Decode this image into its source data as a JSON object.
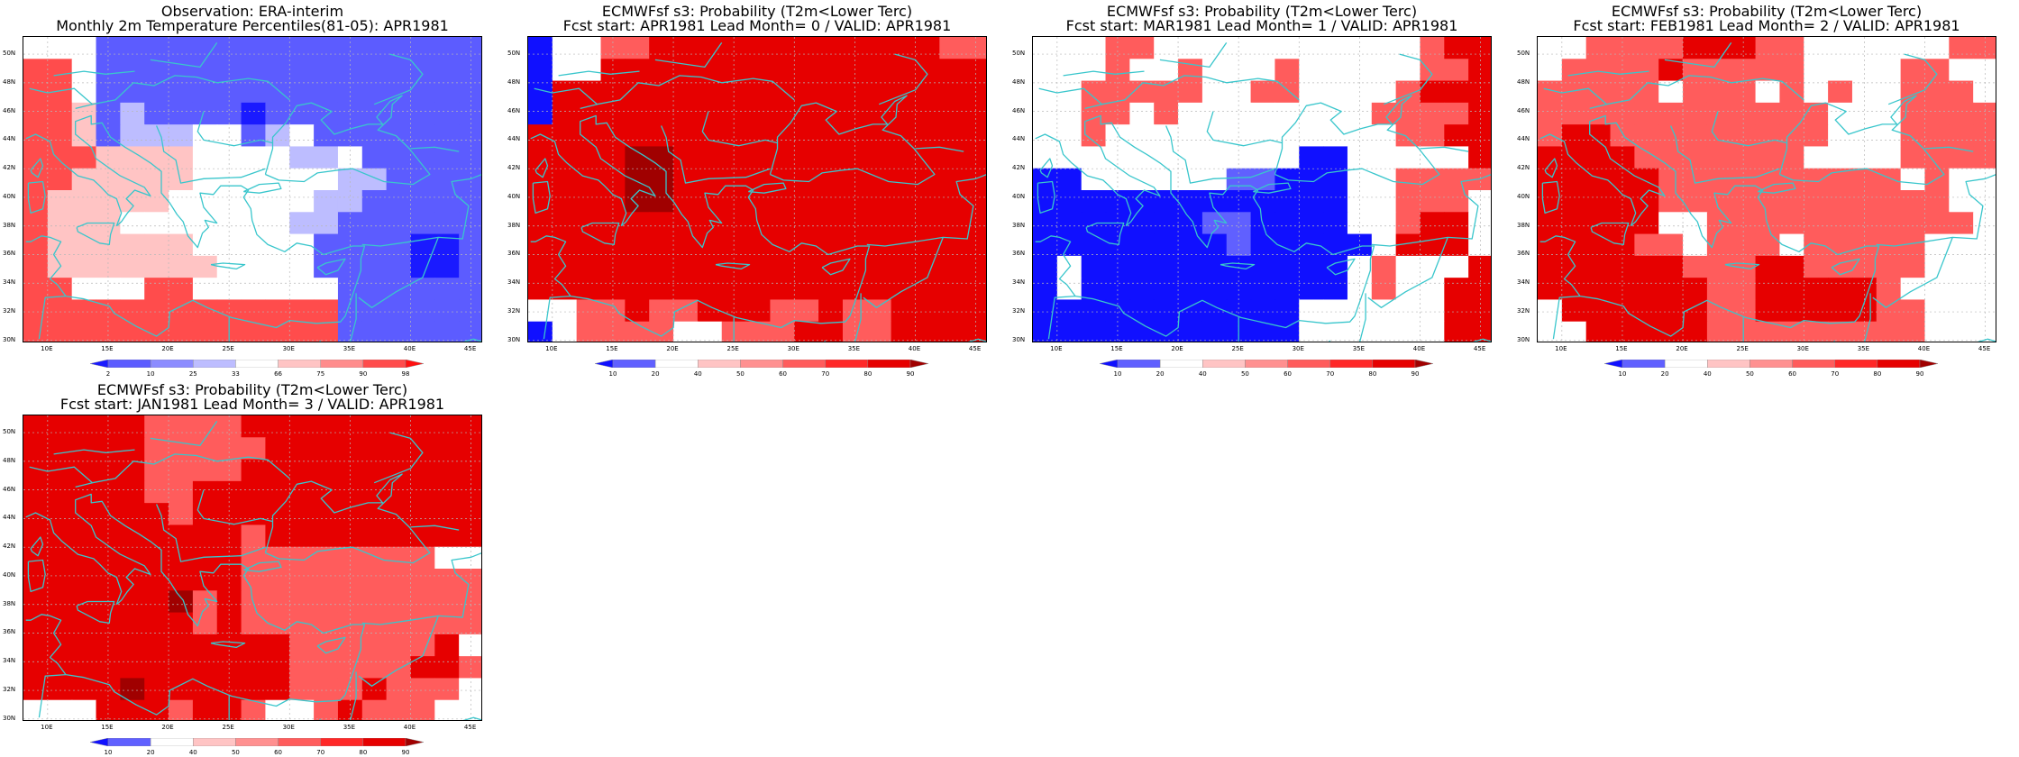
{
  "palette": {
    "coast": "#39c6cc",
    "grid": "#b8b8b8",
    "frame": "#000000"
  },
  "axes": {
    "lat_labels": [
      "30N",
      "32N",
      "34N",
      "36N",
      "38N",
      "40N",
      "42N",
      "44N",
      "46N",
      "48N",
      "50N"
    ],
    "lon_labels": [
      "10E",
      "15E",
      "20E",
      "25E",
      "30E",
      "35E",
      "40E",
      "45E"
    ]
  },
  "panels": [
    {
      "title_line1": "Observation: ERA-interim",
      "title_line2": "Monthly 2m Temperature Percentiles(81-05): APR1981",
      "colorbar": {
        "labels": [
          "2",
          "10",
          "25",
          "33",
          "66",
          "75",
          "90",
          "98"
        ],
        "colors": [
          "#1a1aff",
          "#5c5cff",
          "#8c8cff",
          "#bdbdff",
          "#ffffff",
          "#ffc4c4",
          "#ff8c8c",
          "#ff4c4c",
          "#ff1010"
        ]
      },
      "map_grid": [
        "WWWbbbbbbbbbbbbbbbb",
        "rrWbbbbbbbbbbbbbbbb",
        "rrWbbbbbbbbbbbbbbbb",
        "rrpbsbbbbBbbbbbbbbb",
        "rrpbsssWWbsWbbbbbbb",
        "rrrppppWWWWssWbbbbb",
        "rrpppppWWWWWWssbbbb",
        "rpppppWWWWWWssbbbbb",
        "rpppWWWWWWWssbbbbbb",
        "rppppppWWWWWbbbbBBb",
        "rpppppppWWWWbbbbBBb",
        "rrWWWrrWWWWWWbbbbbb",
        "rrrrrrrrrrrrrbbbbbb",
        "rrrrrrrrrrrrrbbbbbb"
      ]
    },
    {
      "title_line1": "ECMWFsf s3: Probability (T2m<Lower Terc)",
      "title_line2": "Fcst start: APR1981  Lead Month= 0 / VALID: APR1981",
      "colorbar": {
        "labels": [
          "10",
          "20",
          "40",
          "50",
          "60",
          "70",
          "80",
          "90"
        ],
        "colors": [
          "#1010ff",
          "#6060ff",
          "#ffffff",
          "#ffc4c4",
          "#ff9090",
          "#ff5c5c",
          "#ff2828",
          "#e60000",
          "#a00000"
        ]
      },
      "map_grid": [
        "BWWpprrrrrRRRRRrrpp",
        "BWWrRrrrrrrRRRRRRrr",
        "BrrrRRrrrrrRRRRRRrr",
        "BrrrRRRrrrRRRRRRRrr",
        "rrrRRRRRRrrRRRRRRrr",
        "rrrRDDRRRRRRRRRRRRr",
        "rrRRDDRRRRRRRRRRRRr",
        "rrRRDDRRRRRRRRRRRRr",
        "rrRRRRRRRRRRRRRRRRr",
        "RRRRRRRRRRRRRRRRRRR",
        "RRRRRrrRRRRRRRRRRRR",
        "rrrrrrrrrRRRRRRrrRR",
        "WWpprpprrrpprpprrRR",
        "BWppppWWppprrpprrRR"
      ]
    },
    {
      "title_line1": "ECMWFsf s3: Probability (T2m<Lower Terc)",
      "title_line2": "Fcst start: MAR1981  Lead Month= 1 / VALID: APR1981",
      "colorbar": {
        "labels": [
          "10",
          "20",
          "40",
          "50",
          "60",
          "70",
          "80",
          "90"
        ],
        "colors": [
          "#1010ff",
          "#6060ff",
          "#ffffff",
          "#ffc4c4",
          "#ff9090",
          "#ff5c5c",
          "#ff2828",
          "#e60000",
          "#a00000"
        ]
      },
      "map_grid": [
        "WWWppWWWWWWWWWWWprr",
        "WWWpWWpWWWpWWWWWppr",
        "WWpppppWWppWWWWprrr",
        "WWppWpWWWWWWWWppppr",
        "WWpWWWWWWWWWWWWpprr",
        "WWWWWWWWWWWBBWWWWWr",
        "BBWWWWWWbbBBBWWpppp",
        "BBBBBBBBBBBBBWWpppW",
        "BBBBBBBbbBBBBWWprrW",
        "BBBBBBBBbBBBBBWrrrW",
        "BWBBBBBBBBBBBWpWWWr",
        "BWBBBBBBBBBBBWpWWrr",
        "BBBBBBBBBBBWWWWWWrr",
        "BBBBBBBBBBBWWWWWWrr"
      ]
    },
    {
      "title_line1": "ECMWFsf s3: Probability (T2m<Lower Terc)",
      "title_line2": "Fcst start: FEB1981  Lead Month= 2 / VALID: APR1981",
      "colorbar": {
        "labels": [
          "10",
          "20",
          "40",
          "50",
          "60",
          "70",
          "80",
          "90"
        ],
        "colors": [
          "#1010ff",
          "#6060ff",
          "#ffffff",
          "#ffc4c4",
          "#ff9090",
          "#ff5c5c",
          "#ff2828",
          "#e60000",
          "#a00000"
        ]
      },
      "map_grid": [
        "WWppppRRRppWWWWWWpp",
        "WpppprpppppWWWWppWW",
        "pppppWpppWpWpWWpppW",
        "ppppppppppppWWWpppp",
        "prrpppppppppWWWpppp",
        "RRrrpppppppWWWWpppp",
        "rRRrrppppppppppWpWW",
        "rRRrrppppppppppppWW",
        "rrRrrWWpppppppppppW",
        "rrRrppWpppWpppppWWW",
        "rrrrrrppprrpppppWWW",
        "rrRRrrrpprRRrrpWWWW",
        "WrrrrRRpprrrrrppWWW",
        "WWrrrrrpppppppppWWW"
      ]
    },
    {
      "title_line1": "ECMWFsf s3: Probability (T2m<Lower Terc)",
      "title_line2": "Fcst start: JAN1981  Lead Month= 3 / VALID: APR1981",
      "colorbar": {
        "labels": [
          "10",
          "20",
          "40",
          "50",
          "60",
          "70",
          "80",
          "90"
        ],
        "colors": [
          "#1010ff",
          "#6060ff",
          "#ffffff",
          "#ffc4c4",
          "#ff9090",
          "#ff5c5c",
          "#ff2828",
          "#e60000",
          "#a00000"
        ]
      },
      "map_grid": [
        "rrRrrpppprrrrRRrrrr",
        "rrrrrppppprrrrrrrrr",
        "rrrrrpppprrrrrrrrrr",
        "rrrrrpprrrrrrrrrrrr",
        "rRrrrrprrrrrrrrrrrr",
        "rRRrrrrrrprrrrrrrrr",
        "rrRrrrrrrppppppppWW",
        "rrrrrrrrrpppppppppp",
        "rrrrrRDprpppppppppp",
        "rrrrrRRprpppppppppp",
        "rRRrrrrrRRRpppppprW",
        "rrRrrrrrRRRppppprrp",
        "rrrRDrrrRRRppprpppW",
        "WWWrrrprrpWWprpppWW"
      ]
    }
  ]
}
